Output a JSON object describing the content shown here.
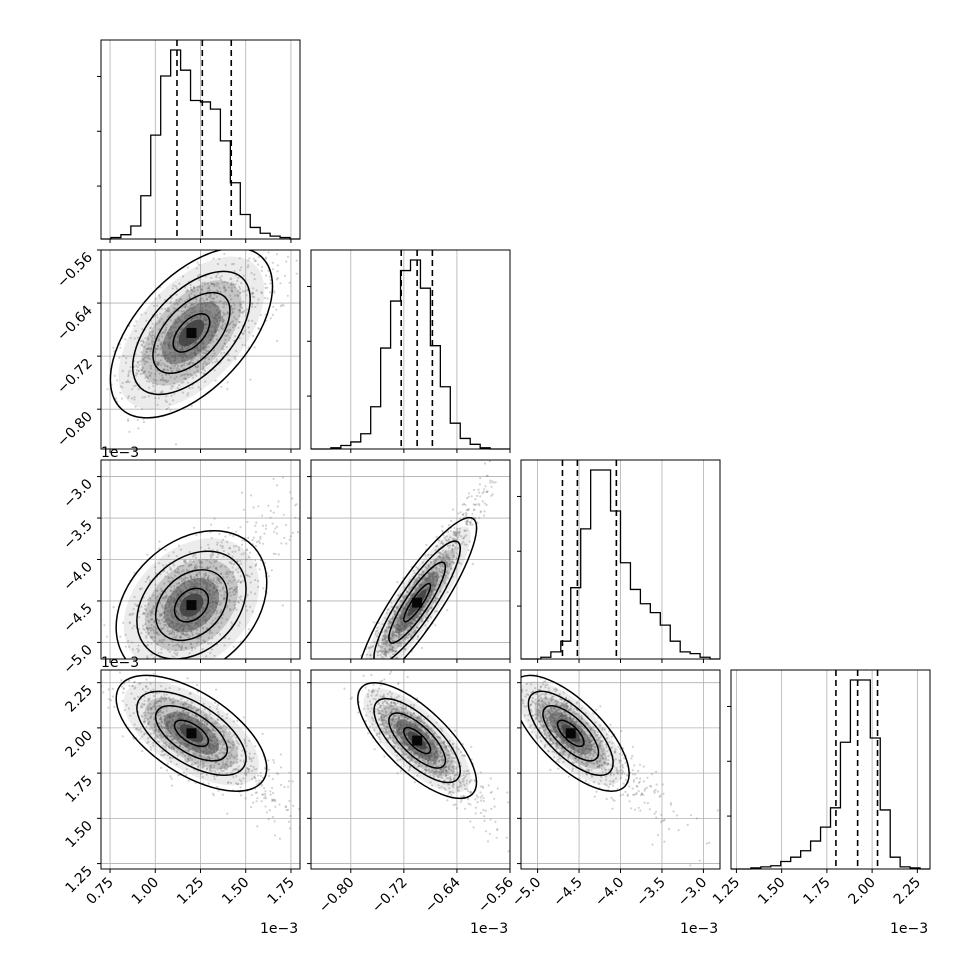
{
  "chart_data": {
    "type": "corner",
    "grid": true,
    "parameters": [
      {
        "range": [
          0.7,
          1.8
        ],
        "ticks": [
          0.75,
          1.0,
          1.25,
          1.5,
          1.75
        ],
        "tick_labels": [
          "0.75",
          "1.00",
          "1.25",
          "1.50",
          "1.75"
        ],
        "offset_text": "1e−3",
        "quantiles": [
          1.12,
          1.26,
          1.42
        ],
        "hist_counts": [
          0,
          1,
          3,
          9,
          30,
          72,
          113,
          131,
          117,
          96,
          95,
          90,
          68,
          39,
          17,
          8,
          4,
          2,
          1,
          0
        ]
      },
      {
        "range": [
          -0.86,
          -0.56
        ],
        "ticks": [
          -0.8,
          -0.72,
          -0.64,
          -0.56
        ],
        "tick_labels": [
          "−0.80",
          "−0.72",
          "−0.64",
          "−0.56"
        ],
        "offset_text": "1e−3",
        "quantiles": [
          -0.724,
          -0.7,
          -0.677
        ],
        "hist_counts": [
          0,
          0,
          1,
          3,
          6,
          13,
          36,
          86,
          126,
          152,
          161,
          137,
          88,
          53,
          22,
          9,
          4,
          1,
          0,
          0
        ]
      },
      {
        "range": [
          -5.2,
          -2.8
        ],
        "ticks": [
          -5.0,
          -4.5,
          -4.0,
          -3.5,
          -3.0
        ],
        "tick_labels": [
          "−5.0",
          "−4.5",
          "−4.0",
          "−3.5",
          "−3.0"
        ],
        "offset_text": "1e−3",
        "quantiles": [
          -4.7,
          -4.52,
          -4.05
        ],
        "hist_counts": [
          0,
          0,
          1,
          4,
          10,
          40,
          73,
          106,
          106,
          83,
          54,
          39,
          31,
          26,
          19,
          10,
          4,
          3,
          1,
          0
        ]
      },
      {
        "range": [
          1.22,
          2.32
        ],
        "ticks": [
          1.25,
          1.5,
          1.75,
          2.0,
          2.25
        ],
        "tick_labels": [
          "1.25",
          "1.50",
          "1.75",
          "2.00",
          "2.25"
        ],
        "offset_text": "1e−3",
        "quantiles": [
          1.8,
          1.92,
          2.03
        ],
        "hist_counts": [
          0,
          0,
          1,
          2,
          3,
          7,
          11,
          17,
          26,
          39,
          57,
          118,
          176,
          176,
          122,
          55,
          11,
          2,
          1,
          0
        ]
      }
    ],
    "pairs": [
      {
        "row": 1,
        "col": 0,
        "center": [
          1.2,
          -0.685
        ],
        "sigma": [
          0.14,
          0.04
        ],
        "rho": 0.55,
        "tail": [
          0.35,
          0.05
        ]
      },
      {
        "row": 2,
        "col": 0,
        "center": [
          1.2,
          -4.55
        ],
        "sigma": [
          0.13,
          0.28
        ],
        "rho": 0.3,
        "tail": [
          0.28,
          1.1
        ]
      },
      {
        "row": 2,
        "col": 1,
        "center": [
          -0.7,
          -4.52
        ],
        "sigma": [
          0.028,
          0.32
        ],
        "rho": 0.88,
        "tail": [
          0.07,
          1.3
        ]
      },
      {
        "row": 3,
        "col": 0,
        "center": [
          1.2,
          1.97
        ],
        "sigma": [
          0.13,
          0.1
        ],
        "rho": -0.6,
        "tail": [
          0.3,
          -0.3
        ]
      },
      {
        "row": 3,
        "col": 1,
        "center": [
          -0.7,
          1.93
        ],
        "sigma": [
          0.028,
          0.1
        ],
        "rho": -0.72,
        "tail": [
          0.07,
          -0.32
        ]
      },
      {
        "row": 3,
        "col": 2,
        "center": [
          -4.6,
          1.97
        ],
        "sigma": [
          0.22,
          0.1
        ],
        "rho": -0.7,
        "tail": [
          0.9,
          -0.35
        ]
      }
    ]
  },
  "colors": {
    "axes": "#000000",
    "grid": "#b0b0b0",
    "points": "#7f7f7f",
    "contour": "#000000"
  }
}
